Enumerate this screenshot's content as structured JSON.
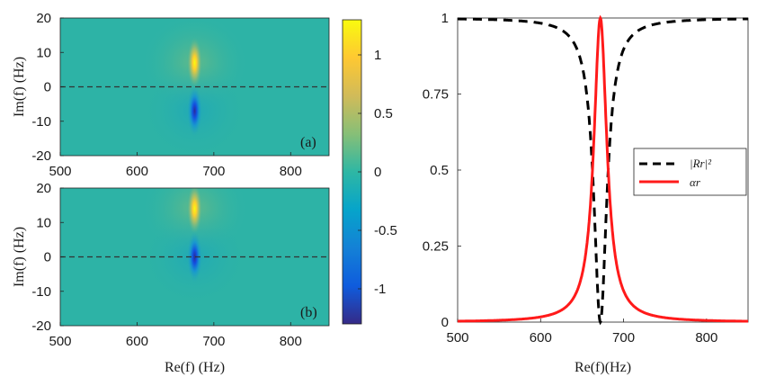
{
  "chart_data": [
    {
      "id": "a",
      "type": "heatmap",
      "panel_label": "(a)",
      "xlabel": "Re(f) (Hz)",
      "ylabel": "Im(f) (Hz)",
      "xlim": [
        500,
        850
      ],
      "ylim": [
        -20,
        20
      ],
      "xticks": [
        500,
        600,
        700,
        800
      ],
      "yticks": [
        20,
        10,
        0,
        -10,
        -20
      ],
      "tick_labels_x": [
        "500",
        "600",
        "700",
        "800"
      ],
      "tick_labels_y": [
        "20",
        "10",
        "0",
        "-10",
        "-20"
      ],
      "pole": {
        "re": 675,
        "im": 7,
        "value": 1.3
      },
      "zero": {
        "re": 675,
        "im": -7,
        "value": -1.3
      },
      "dashed_line_im": 0
    },
    {
      "id": "b",
      "type": "heatmap",
      "panel_label": "(b)",
      "xlabel": "Re(f) (Hz)",
      "ylabel": "Im(f) (Hz)",
      "xlim": [
        500,
        850
      ],
      "ylim": [
        -20,
        20
      ],
      "xticks": [
        500,
        600,
        700,
        800
      ],
      "yticks": [
        20,
        10,
        0,
        -10,
        -20
      ],
      "tick_labels_x": [
        "500",
        "600",
        "700",
        "800"
      ],
      "tick_labels_y": [
        "20",
        "10",
        "0",
        "-10",
        "-20"
      ],
      "pole": {
        "re": 675,
        "im": 14,
        "value": 1.3
      },
      "zero": {
        "re": 675,
        "im": 0,
        "value": -1.3
      },
      "dashed_line_im": 0
    },
    {
      "id": "colorbar",
      "type": "colorbar",
      "clim": [
        -1.3,
        1.3
      ],
      "ticks": [
        1,
        0.5,
        0,
        -0.5,
        -1
      ],
      "tick_labels": [
        "1",
        "0.5",
        "0",
        "-0.5",
        "-1"
      ],
      "colormap": "parula",
      "colors": [
        "#352a87",
        "#0f5cdd",
        "#1481d6",
        "#06a4ca",
        "#2eb7a4",
        "#87bf77",
        "#d1bb59",
        "#fec832",
        "#f9fb0e"
      ]
    },
    {
      "id": "right",
      "type": "line",
      "xlabel": "Re(f)(Hz)",
      "xlim": [
        500,
        850
      ],
      "ylim": [
        0,
        1
      ],
      "xticks": [
        500,
        600,
        700,
        800
      ],
      "yticks": [
        1,
        0.75,
        0.5,
        0.25,
        0
      ],
      "tick_labels_x": [
        "500",
        "600",
        "700",
        "800"
      ],
      "tick_labels_y": [
        "1",
        "0.75",
        "0.5",
        "0.25",
        "0"
      ],
      "resonance_hz": 672,
      "series": [
        {
          "name": "|R_r|^2",
          "legend": "|Rr|²",
          "style": "dashed",
          "color": "#000000",
          "x": [
            500,
            550,
            600,
            630,
            650,
            660,
            665,
            670,
            672,
            675,
            680,
            690,
            700,
            730,
            780,
            850
          ],
          "y": [
            0.995,
            0.99,
            0.97,
            0.93,
            0.8,
            0.56,
            0.31,
            0.03,
            0.0,
            0.12,
            0.55,
            0.84,
            0.92,
            0.965,
            0.985,
            0.993
          ]
        },
        {
          "name": "alpha_r",
          "legend": "αr",
          "style": "solid",
          "color": "#ff1a1a",
          "x": [
            500,
            550,
            600,
            630,
            650,
            660,
            665,
            670,
            672,
            675,
            680,
            690,
            700,
            730,
            780,
            850
          ],
          "y": [
            0.005,
            0.01,
            0.03,
            0.07,
            0.2,
            0.44,
            0.69,
            0.97,
            1.0,
            0.88,
            0.45,
            0.16,
            0.08,
            0.035,
            0.015,
            0.007
          ]
        }
      ],
      "legend_position": "center-right"
    }
  ]
}
